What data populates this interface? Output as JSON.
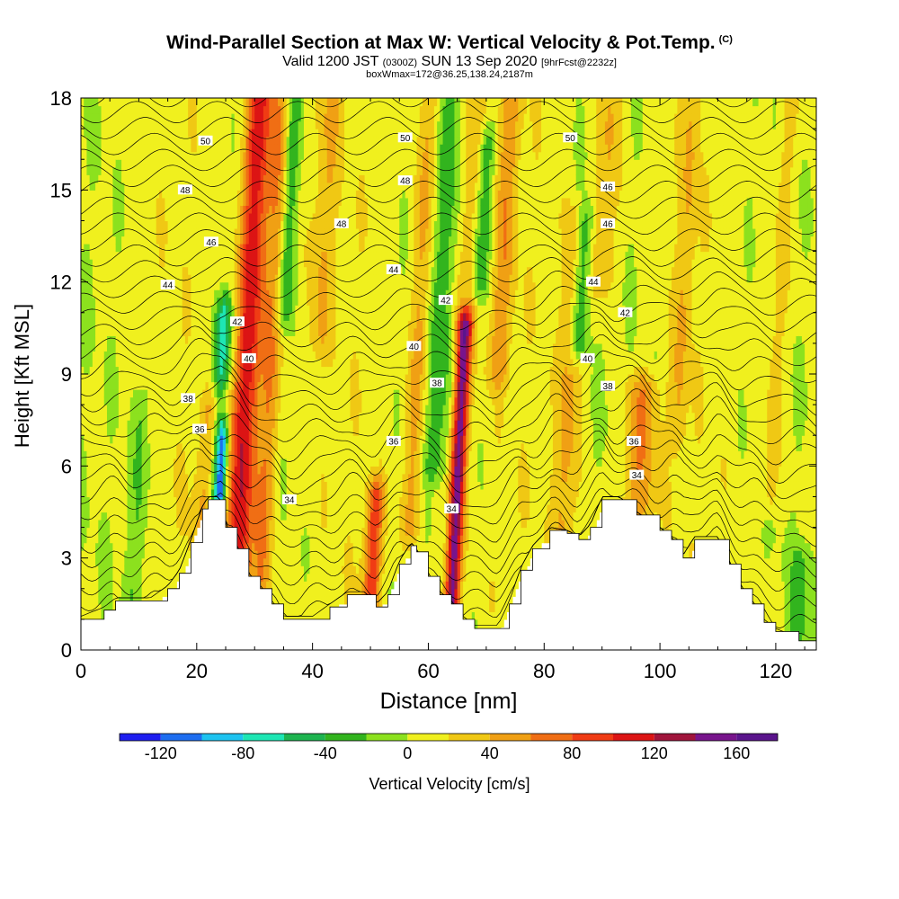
{
  "title": {
    "main": "Wind-Parallel Section at Max W: Vertical Velocity & Pot.Temp.",
    "mark": "(C)",
    "sub_valid": "Valid 1200 JST",
    "sub_utc": "(0300Z)",
    "sub_date": "SUN 13 Sep 2020",
    "sub_fcst": "[9hrFcst@2232z]",
    "sub2": "boxWmax=172@36.25,138.24,2187m"
  },
  "chart_data": {
    "type": "heatmap",
    "xlabel": "Distance [nm]",
    "ylabel": "Height [Kft MSL]",
    "xlim": [
      0,
      127
    ],
    "ylim": [
      0,
      18
    ],
    "x_ticks": [
      0,
      20,
      40,
      60,
      80,
      100,
      120
    ],
    "y_ticks": [
      0,
      3,
      6,
      9,
      12,
      15,
      18
    ],
    "colorbar": {
      "label": "Vertical Velocity [cm/s]",
      "ticks": [
        -120,
        -80,
        -40,
        0,
        40,
        80,
        120,
        160
      ],
      "boundaries": [
        -140,
        -120,
        -100,
        -80,
        -60,
        -40,
        -20,
        0,
        20,
        40,
        60,
        80,
        100,
        120,
        140,
        160,
        180
      ],
      "colors": [
        "#1e1ef0",
        "#1e6ef0",
        "#1ec3f0",
        "#1ee6b4",
        "#1eb450",
        "#32b41e",
        "#8ce11e",
        "#f0f01e",
        "#f0c814",
        "#f0a014",
        "#f06e14",
        "#f03c14",
        "#dc1414",
        "#a0143c",
        "#78148c",
        "#5a148c"
      ]
    },
    "terrain_profile": [
      {
        "x": 0,
        "y": 1.0
      },
      {
        "x": 4,
        "y": 1.3
      },
      {
        "x": 6,
        "y": 1.6
      },
      {
        "x": 12,
        "y": 1.6
      },
      {
        "x": 15,
        "y": 2.0
      },
      {
        "x": 17,
        "y": 2.5
      },
      {
        "x": 19,
        "y": 3.5
      },
      {
        "x": 21,
        "y": 4.6
      },
      {
        "x": 22,
        "y": 4.9
      },
      {
        "x": 24,
        "y": 4.9
      },
      {
        "x": 25,
        "y": 4.0
      },
      {
        "x": 27,
        "y": 3.3
      },
      {
        "x": 29,
        "y": 2.4
      },
      {
        "x": 31,
        "y": 2.0
      },
      {
        "x": 33,
        "y": 1.5
      },
      {
        "x": 35,
        "y": 1.0
      },
      {
        "x": 40,
        "y": 1.0
      },
      {
        "x": 43,
        "y": 1.4
      },
      {
        "x": 46,
        "y": 1.8
      },
      {
        "x": 49,
        "y": 1.8
      },
      {
        "x": 51,
        "y": 1.4
      },
      {
        "x": 53,
        "y": 1.8
      },
      {
        "x": 55,
        "y": 2.8
      },
      {
        "x": 57,
        "y": 3.4
      },
      {
        "x": 58,
        "y": 3.2
      },
      {
        "x": 60,
        "y": 2.4
      },
      {
        "x": 62,
        "y": 1.8
      },
      {
        "x": 64,
        "y": 1.5
      },
      {
        "x": 66,
        "y": 1.0
      },
      {
        "x": 68,
        "y": 0.7
      },
      {
        "x": 72,
        "y": 0.7
      },
      {
        "x": 74,
        "y": 1.5
      },
      {
        "x": 76,
        "y": 2.6
      },
      {
        "x": 78,
        "y": 3.3
      },
      {
        "x": 81,
        "y": 3.9
      },
      {
        "x": 84,
        "y": 3.8
      },
      {
        "x": 86,
        "y": 3.6
      },
      {
        "x": 88,
        "y": 4.0
      },
      {
        "x": 90,
        "y": 4.9
      },
      {
        "x": 93,
        "y": 4.9
      },
      {
        "x": 96,
        "y": 4.4
      },
      {
        "x": 100,
        "y": 3.9
      },
      {
        "x": 102,
        "y": 3.6
      },
      {
        "x": 104,
        "y": 3.0
      },
      {
        "x": 106,
        "y": 3.6
      },
      {
        "x": 110,
        "y": 3.6
      },
      {
        "x": 112,
        "y": 2.8
      },
      {
        "x": 114,
        "y": 2.0
      },
      {
        "x": 116,
        "y": 1.5
      },
      {
        "x": 118,
        "y": 0.9
      },
      {
        "x": 120,
        "y": 0.6
      },
      {
        "x": 124,
        "y": 0.3
      },
      {
        "x": 127,
        "y": 0.3
      }
    ],
    "updrafts": [
      {
        "x": 22,
        "w": 2.5,
        "y0": 2.5,
        "y1": 8.0,
        "amp": 60
      },
      {
        "x": 27,
        "w": 2.3,
        "y0": 2.0,
        "y1": 18.0,
        "amp": 110
      },
      {
        "x": 31,
        "w": 1.8,
        "y0": 2.0,
        "y1": 18.0,
        "amp": 50
      },
      {
        "x": 41,
        "w": 2.0,
        "y0": 10.0,
        "y1": 18.0,
        "amp": 30
      },
      {
        "x": 50,
        "w": 1.5,
        "y0": 1.5,
        "y1": 5.0,
        "amp": 80
      },
      {
        "x": 57,
        "w": 1.8,
        "y0": 4.0,
        "y1": 18.0,
        "amp": 40
      },
      {
        "x": 64,
        "w": 1.3,
        "y0": 1.5,
        "y1": 10.5,
        "amp": 150
      },
      {
        "x": 66,
        "w": 2.0,
        "y0": 11.0,
        "y1": 18.0,
        "amp": 30
      },
      {
        "x": 72,
        "w": 2.0,
        "y0": 9.0,
        "y1": 18.0,
        "amp": 40
      },
      {
        "x": 83,
        "w": 2.0,
        "y0": 3.0,
        "y1": 14.0,
        "amp": 40
      },
      {
        "x": 90,
        "w": 2.0,
        "y0": 12.0,
        "y1": 18.0,
        "amp": 40
      },
      {
        "x": 96,
        "w": 3.0,
        "y0": 4.5,
        "y1": 8.5,
        "amp": 50
      },
      {
        "x": 103,
        "w": 1.5,
        "y0": 7.0,
        "y1": 18.0,
        "amp": 30
      },
      {
        "x": 119,
        "w": 1.5,
        "y0": 5.0,
        "y1": 18.0,
        "amp": 30
      }
    ],
    "downdrafts": [
      {
        "x": 23,
        "w": 1.5,
        "y0": 4.5,
        "y1": 11.0,
        "amp": -75
      },
      {
        "x": 24,
        "w": 1.0,
        "y0": 5.0,
        "y1": 7.0,
        "amp": -110
      },
      {
        "x": 35,
        "w": 1.5,
        "y0": 11.0,
        "y1": 18.0,
        "amp": -45
      },
      {
        "x": 61,
        "w": 2.0,
        "y0": 6.0,
        "y1": 18.0,
        "amp": -40
      },
      {
        "x": 69,
        "w": 1.5,
        "y0": 12.0,
        "y1": 16.5,
        "amp": -45
      },
      {
        "x": 86,
        "w": 1.5,
        "y0": 10.0,
        "y1": 14.0,
        "amp": -60
      },
      {
        "x": 9,
        "w": 2.0,
        "y0": 1.5,
        "y1": 8.0,
        "amp": -25
      },
      {
        "x": 124,
        "w": 2.0,
        "y0": 0.5,
        "y1": 3.0,
        "amp": -30
      }
    ],
    "theta_contour_labels": [
      {
        "text": "50",
        "x": 21.5,
        "y": 16.6
      },
      {
        "text": "50",
        "x": 56.0,
        "y": 16.7
      },
      {
        "text": "50",
        "x": 84.5,
        "y": 16.7
      },
      {
        "text": "48",
        "x": 18.0,
        "y": 15.0
      },
      {
        "text": "48",
        "x": 56.0,
        "y": 15.3
      },
      {
        "text": "48",
        "x": 45.0,
        "y": 13.9
      },
      {
        "text": "46",
        "x": 91.0,
        "y": 15.1
      },
      {
        "text": "46",
        "x": 22.5,
        "y": 13.3
      },
      {
        "text": "46",
        "x": 91.0,
        "y": 13.9
      },
      {
        "text": "44",
        "x": 15.0,
        "y": 11.9
      },
      {
        "text": "44",
        "x": 54.0,
        "y": 12.4
      },
      {
        "text": "44",
        "x": 88.5,
        "y": 12.0
      },
      {
        "text": "42",
        "x": 27.0,
        "y": 10.7
      },
      {
        "text": "42",
        "x": 63.0,
        "y": 11.4
      },
      {
        "text": "42",
        "x": 94.0,
        "y": 11.0
      },
      {
        "text": "40",
        "x": 29.0,
        "y": 9.5
      },
      {
        "text": "40",
        "x": 57.5,
        "y": 9.9
      },
      {
        "text": "40",
        "x": 87.5,
        "y": 9.5
      },
      {
        "text": "38",
        "x": 18.5,
        "y": 8.2
      },
      {
        "text": "38",
        "x": 61.5,
        "y": 8.7
      },
      {
        "text": "38",
        "x": 91.0,
        "y": 8.6
      },
      {
        "text": "36",
        "x": 20.5,
        "y": 7.2
      },
      {
        "text": "36",
        "x": 54.0,
        "y": 6.8
      },
      {
        "text": "36",
        "x": 95.5,
        "y": 6.8
      },
      {
        "text": "34",
        "x": 36.0,
        "y": 4.9
      },
      {
        "text": "34",
        "x": 64.0,
        "y": 4.6
      },
      {
        "text": "34",
        "x": 96.0,
        "y": 5.7
      }
    ]
  }
}
